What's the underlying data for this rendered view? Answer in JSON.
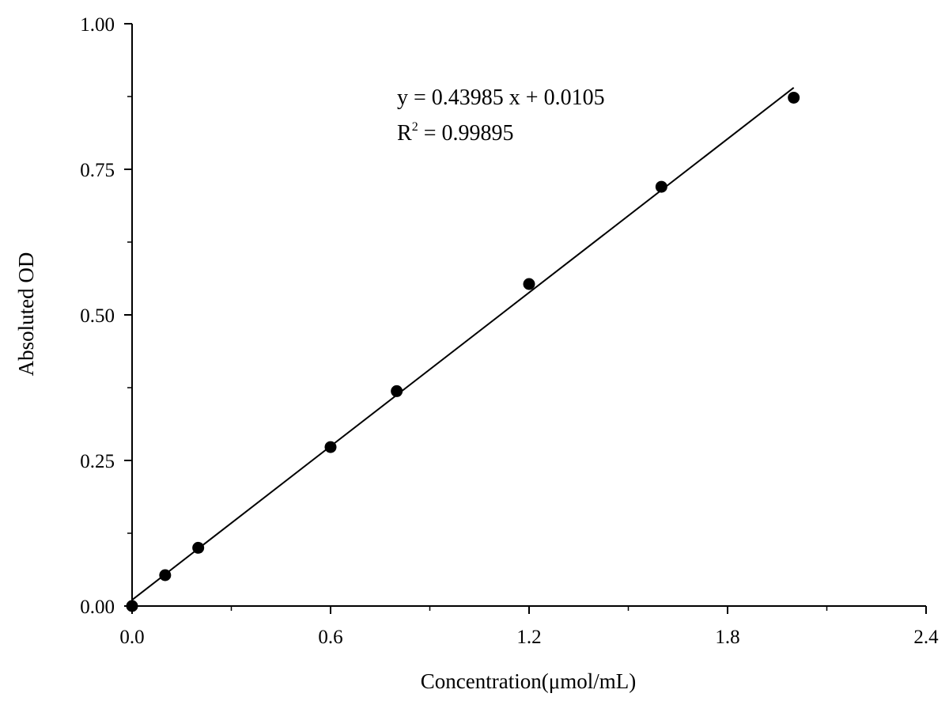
{
  "chart_data": {
    "type": "scatter",
    "xlabel": "Concentration(μmol/mL)",
    "ylabel": "Absoluted OD",
    "xlim": [
      0.0,
      2.4
    ],
    "ylim": [
      0.0,
      1.0
    ],
    "x_ticks": [
      "0.0",
      "0.6",
      "1.2",
      "1.8",
      "2.4"
    ],
    "y_ticks": [
      "0.00",
      "0.25",
      "0.50",
      "0.75",
      "1.00"
    ],
    "grid": false,
    "series": [
      {
        "x": [
          0.0,
          0.1,
          0.2,
          0.6,
          0.8,
          1.2,
          1.6,
          2.0
        ],
        "y": [
          0.0,
          0.053,
          0.1,
          0.273,
          0.369,
          0.553,
          0.72,
          0.873
        ],
        "marker": "filled-circle",
        "color": "#000000"
      }
    ],
    "fit_line": {
      "slope": 0.43985,
      "intercept": 0.0105,
      "x_range": [
        0.0,
        2.0
      ],
      "color": "#000000"
    },
    "annotation": {
      "equation": "y = 0.43985 x + 0.0105",
      "r2_label": "R",
      "r2_exponent": "2",
      "r2_value": " = 0.99895"
    }
  }
}
